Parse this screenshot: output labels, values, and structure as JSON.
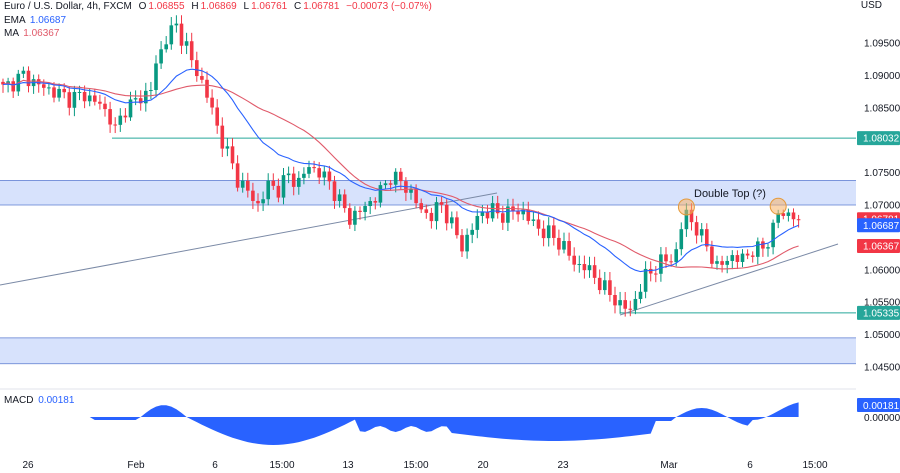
{
  "header": {
    "symbol": "Euro / U.S. Dollar, 4h, FXCM",
    "o_label": "O",
    "o_value": "1.06855",
    "h_label": "H",
    "h_value": "1.06869",
    "l_label": "L",
    "l_value": "1.06761",
    "c_label": "C",
    "c_value": "1.06781",
    "change": "−0.00073 (−0.07%)",
    "ema_label": "EMA",
    "ema_value": "1.06687",
    "ma_label": "MA",
    "ma_value": "1.06367",
    "currency": "USD"
  },
  "colors": {
    "up": "#089981",
    "down": "#f23645",
    "ema": "#2962ff",
    "ma": "#e05a6a",
    "zone": "#c9d8fb",
    "zone_border": "#5b7bd0",
    "level": "#26a69a",
    "trend": "#7b8aa6",
    "macd": "#2962ff",
    "marker": "#f7b267"
  },
  "chart_data": {
    "type": "candlestick",
    "title": "Euro / U.S. Dollar, 4h, FXCM",
    "ylim": [
      1.0452,
      1.1
    ],
    "y_ticks": [
      "1.09500",
      "1.09000",
      "1.08500",
      "1.07500",
      "1.07000",
      "1.06000",
      "1.05500",
      "1.05000",
      "1.04500"
    ],
    "x_ticks": [
      "26",
      "Feb",
      "6",
      "15:00",
      "13",
      "15:00",
      "20",
      "23",
      "Mar",
      "6",
      "15:00"
    ],
    "close_anchors": [
      [
        0,
        1.088
      ],
      [
        4,
        1.09
      ],
      [
        7,
        1.0885
      ],
      [
        10,
        1.0875
      ],
      [
        13,
        1.0865
      ],
      [
        16,
        1.087
      ],
      [
        19,
        1.0855
      ],
      [
        21,
        1.0835
      ],
      [
        22,
        1.0815
      ],
      [
        24,
        1.085
      ],
      [
        27,
        1.0865
      ],
      [
        29,
        1.088
      ],
      [
        30,
        1.0915
      ],
      [
        32,
        1.096
      ],
      [
        34,
        1.0975
      ],
      [
        36,
        1.0945
      ],
      [
        37,
        1.092
      ],
      [
        39,
        1.089
      ],
      [
        40,
        1.087
      ],
      [
        42,
        1.082
      ],
      [
        44,
        1.078
      ],
      [
        46,
        1.074
      ],
      [
        48,
        1.072
      ],
      [
        50,
        1.07
      ],
      [
        52,
        1.073
      ],
      [
        54,
        1.0725
      ],
      [
        56,
        1.0745
      ],
      [
        58,
        1.0735
      ],
      [
        60,
        1.076
      ],
      [
        62,
        1.075
      ],
      [
        64,
        1.0735
      ],
      [
        66,
        1.0705
      ],
      [
        68,
        1.068
      ],
      [
        70,
        1.069
      ],
      [
        72,
        1.0705
      ],
      [
        74,
        1.072
      ],
      [
        76,
        1.0745
      ],
      [
        78,
        1.0735
      ],
      [
        80,
        1.072
      ],
      [
        82,
        1.069
      ],
      [
        84,
        1.0685
      ],
      [
        86,
        1.07
      ],
      [
        88,
        1.067
      ],
      [
        90,
        1.0635
      ],
      [
        92,
        1.0665
      ],
      [
        94,
        1.069
      ],
      [
        96,
        1.069
      ],
      [
        98,
        1.0685
      ],
      [
        100,
        1.069
      ],
      [
        102,
        1.069
      ],
      [
        104,
        1.067
      ],
      [
        106,
        1.066
      ],
      [
        108,
        1.065
      ],
      [
        110,
        1.0635
      ],
      [
        112,
        1.061
      ],
      [
        114,
        1.0605
      ],
      [
        116,
        1.059
      ],
      [
        118,
        1.057
      ],
      [
        120,
        1.0555
      ],
      [
        121,
        1.0545
      ],
      [
        123,
        1.0538
      ],
      [
        124,
        1.0555
      ],
      [
        126,
        1.059
      ],
      [
        128,
        1.0605
      ],
      [
        130,
        1.0615
      ],
      [
        132,
        1.0625
      ],
      [
        133,
        1.0665
      ],
      [
        134,
        1.069
      ],
      [
        136,
        1.066
      ],
      [
        138,
        1.064
      ],
      [
        140,
        1.06
      ],
      [
        142,
        1.062
      ],
      [
        144,
        1.0615
      ],
      [
        146,
        1.0625
      ],
      [
        148,
        1.063
      ],
      [
        150,
        1.0645
      ],
      [
        151,
        1.066
      ],
      [
        152,
        1.069
      ],
      [
        154,
        1.0685
      ],
      [
        156,
        1.0678
      ]
    ],
    "ema_value": 1.06687,
    "ma_value": 1.06367,
    "annotations": {
      "label_text": "Double Top (?)",
      "level_1": "1.08032",
      "level_2": "1.05335",
      "last_price": "1.06781",
      "ema_tag": "1.06687",
      "ma_tag": "1.06367"
    },
    "resistance_zone": [
      1.07,
      1.0738
    ],
    "support_zone": [
      1.0455,
      1.0495
    ],
    "macd": {
      "label": "MACD",
      "value": "0.00181",
      "zero_tick": "0.00000",
      "value_tag": "0.00181"
    }
  }
}
